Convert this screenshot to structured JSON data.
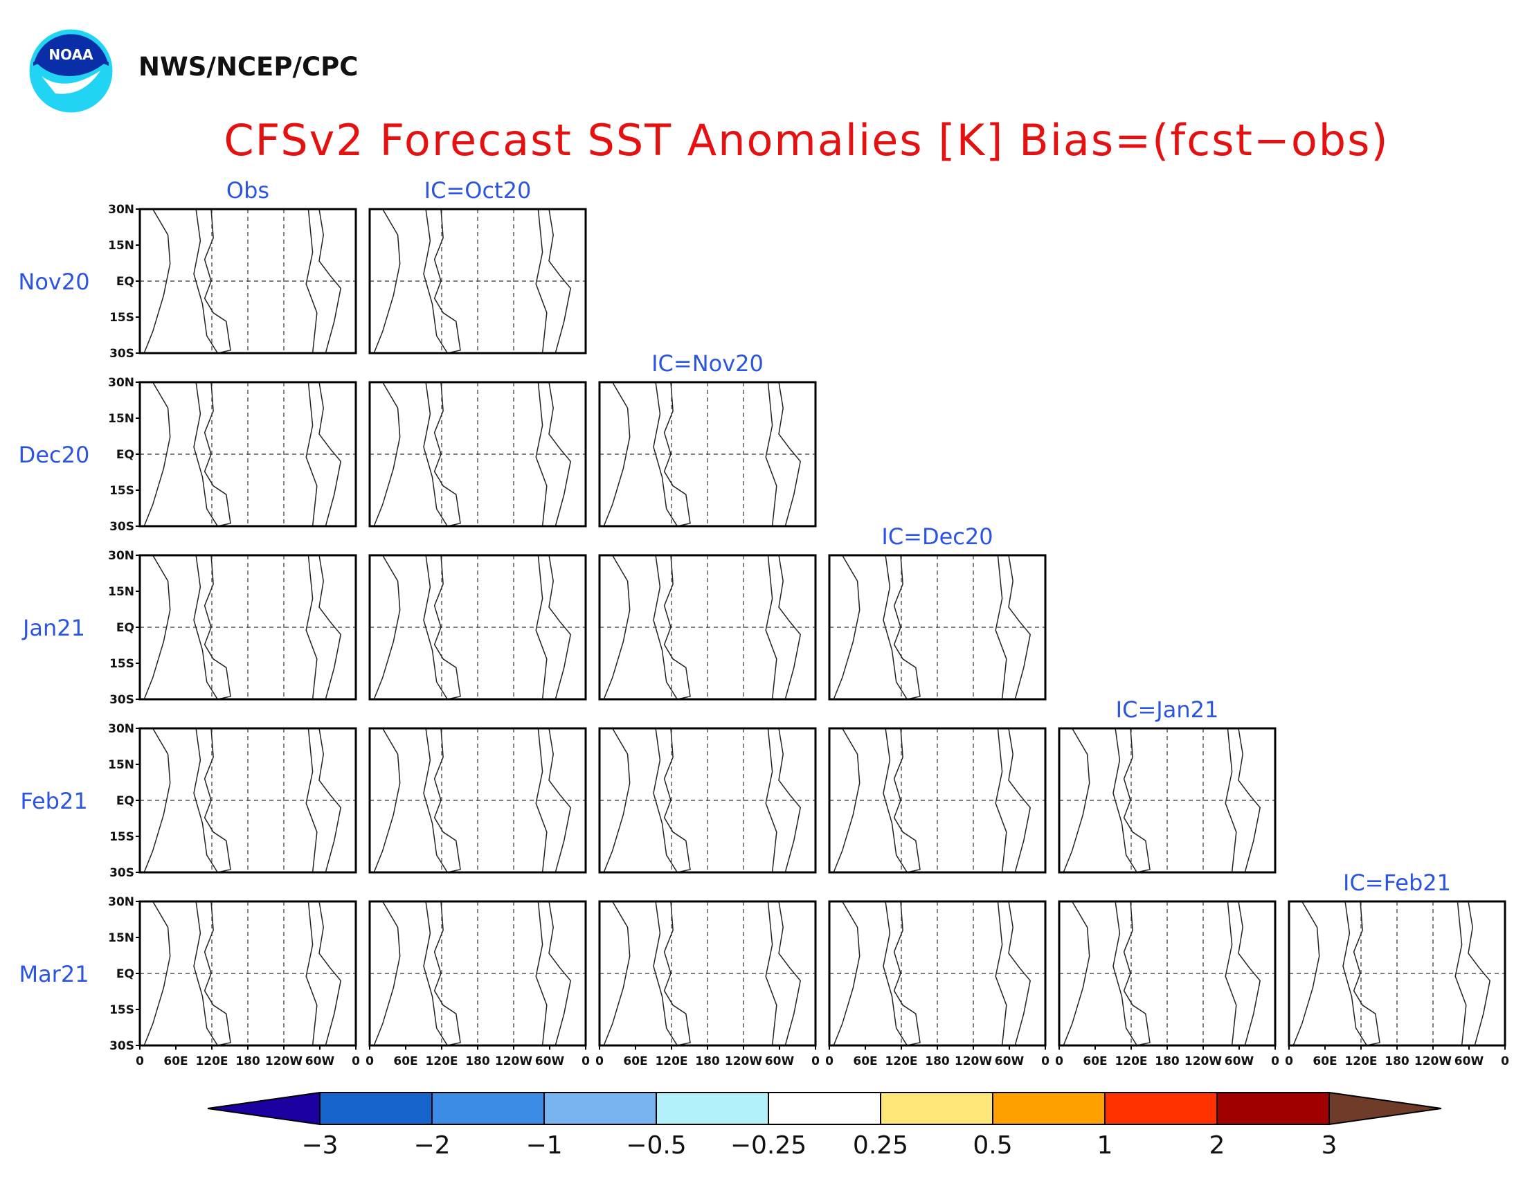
{
  "header": {
    "agency": "NWS/NCEP/CPC",
    "logo_text": "NOAA",
    "title": "CFSv2 Forecast SST Anomalies [K] Bias=(fcst−obs)"
  },
  "chart_data": {
    "type": "heatmap",
    "variable": "SST anomaly",
    "units": "K",
    "column_titles": [
      "Obs",
      "IC=Oct20",
      "IC=Nov20",
      "IC=Dec20",
      "IC=Jan21",
      "IC=Feb21"
    ],
    "rows": [
      "Nov20",
      "Dec20",
      "Jan21",
      "Feb21",
      "Mar21"
    ],
    "panels_per_row": [
      2,
      3,
      4,
      5,
      6
    ],
    "lat_ticks": [
      "30N",
      "15N",
      "EQ",
      "15S",
      "30S"
    ],
    "lat_range": [
      -30,
      30
    ],
    "lon_ticks": [
      "0",
      "60E",
      "120E",
      "180",
      "120W",
      "60W",
      "0"
    ],
    "lon_range": [
      0,
      360
    ],
    "colorbar": {
      "levels": [
        "−3",
        "−2",
        "−1",
        "−0.5",
        "−0.25",
        "0.25",
        "0.5",
        "1",
        "2",
        "3"
      ],
      "colors": [
        "#1c00a0",
        "#1864cd",
        "#3c8ce6",
        "#78b4f0",
        "#b4f0fa",
        "#ffffff",
        "#ffe678",
        "#ffa000",
        "#ff3200",
        "#a00000",
        "#6e3c28"
      ]
    },
    "gridlines": "dashed at 120E, 180, 120W and EQ"
  }
}
